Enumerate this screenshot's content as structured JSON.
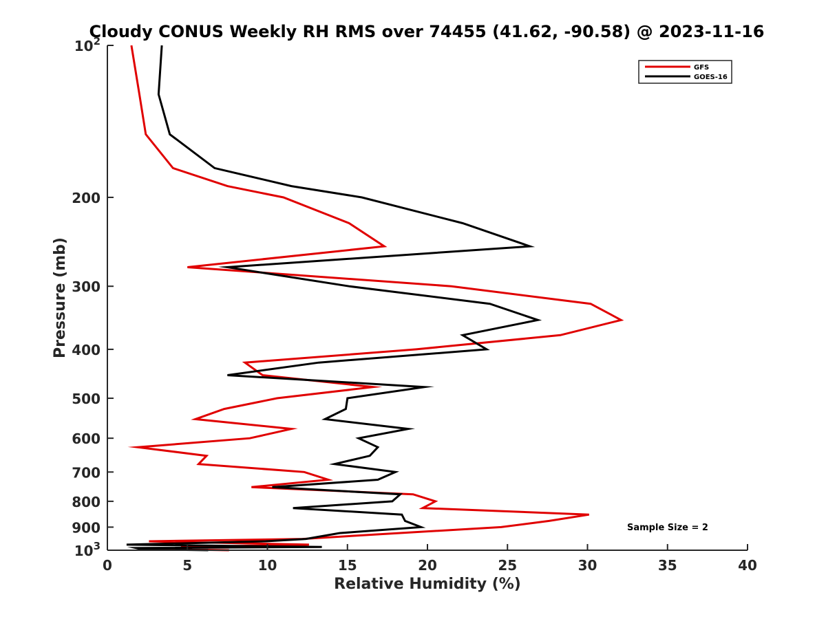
{
  "chart_data": {
    "type": "line",
    "title": "Cloudy CONUS Weekly RH RMS over 74455 (41.62, -90.58) @ 2023-11-16",
    "xlabel": "Relative Humidity (%)",
    "ylabel": "Pressure (mb)",
    "xlim": [
      0,
      40
    ],
    "ylim": [
      100,
      1000
    ],
    "y_scale": "log",
    "y_reversed": true,
    "grid": false,
    "legend_position": "top-right",
    "annotation": "Sample Size = 2",
    "x_ticks": [
      {
        "value": 0,
        "label": "0"
      },
      {
        "value": 5,
        "label": "5"
      },
      {
        "value": 10,
        "label": "10"
      },
      {
        "value": 15,
        "label": "15"
      },
      {
        "value": 20,
        "label": "20"
      },
      {
        "value": 25,
        "label": "25"
      },
      {
        "value": 30,
        "label": "30"
      },
      {
        "value": 35,
        "label": "35"
      },
      {
        "value": 40,
        "label": "40"
      }
    ],
    "y_ticks": [
      {
        "value": 100,
        "base": "10",
        "exp": "2"
      },
      {
        "value": 200,
        "label": "200"
      },
      {
        "value": 300,
        "label": "300"
      },
      {
        "value": 400,
        "label": "400"
      },
      {
        "value": 500,
        "label": "500"
      },
      {
        "value": 600,
        "label": "600"
      },
      {
        "value": 700,
        "label": "700"
      },
      {
        "value": 800,
        "label": "800"
      },
      {
        "value": 900,
        "label": "900"
      },
      {
        "value": 1000,
        "base": "10",
        "exp": "3"
      }
    ],
    "series": [
      {
        "name": "GFS",
        "color": "#e00000",
        "points": [
          {
            "p": 100,
            "x": 1.5
          },
          {
            "p": 125,
            "x": 2.0
          },
          {
            "p": 150,
            "x": 2.4
          },
          {
            "p": 175,
            "x": 4.1
          },
          {
            "p": 190,
            "x": 7.5
          },
          {
            "p": 200,
            "x": 11.0
          },
          {
            "p": 225,
            "x": 15.1
          },
          {
            "p": 250,
            "x": 17.3
          },
          {
            "p": 275,
            "x": 5.0
          },
          {
            "p": 300,
            "x": 21.5
          },
          {
            "p": 325,
            "x": 30.2
          },
          {
            "p": 350,
            "x": 32.1
          },
          {
            "p": 375,
            "x": 28.3
          },
          {
            "p": 400,
            "x": 19.3
          },
          {
            "p": 425,
            "x": 8.6
          },
          {
            "p": 450,
            "x": 9.7
          },
          {
            "p": 475,
            "x": 16.6
          },
          {
            "p": 500,
            "x": 10.6
          },
          {
            "p": 525,
            "x": 7.3
          },
          {
            "p": 550,
            "x": 5.5
          },
          {
            "p": 575,
            "x": 11.5
          },
          {
            "p": 600,
            "x": 8.9
          },
          {
            "p": 625,
            "x": 1.9
          },
          {
            "p": 650,
            "x": 6.2
          },
          {
            "p": 675,
            "x": 5.7
          },
          {
            "p": 700,
            "x": 12.3
          },
          {
            "p": 725,
            "x": 13.8
          },
          {
            "p": 750,
            "x": 9.0
          },
          {
            "p": 775,
            "x": 19.1
          },
          {
            "p": 800,
            "x": 20.5
          },
          {
            "p": 825,
            "x": 19.7
          },
          {
            "p": 850,
            "x": 30.1
          },
          {
            "p": 875,
            "x": 27.6
          },
          {
            "p": 900,
            "x": 24.6
          },
          {
            "p": 925,
            "x": 18.2
          },
          {
            "p": 950,
            "x": 12.2
          },
          {
            "p": 960,
            "x": 2.6
          },
          {
            "p": 975,
            "x": 12.6
          },
          {
            "p": 985,
            "x": 4.6
          },
          {
            "p": 990,
            "x": 5.3
          },
          {
            "p": 995,
            "x": 3.1
          },
          {
            "p": 1000,
            "x": 7.6
          }
        ]
      },
      {
        "name": "GOES-16",
        "color": "#000000",
        "points": [
          {
            "p": 100,
            "x": 3.4
          },
          {
            "p": 125,
            "x": 3.2
          },
          {
            "p": 150,
            "x": 3.9
          },
          {
            "p": 175,
            "x": 6.7
          },
          {
            "p": 190,
            "x": 11.5
          },
          {
            "p": 200,
            "x": 15.9
          },
          {
            "p": 225,
            "x": 22.2
          },
          {
            "p": 250,
            "x": 26.4
          },
          {
            "p": 275,
            "x": 7.5
          },
          {
            "p": 300,
            "x": 15.1
          },
          {
            "p": 325,
            "x": 23.9
          },
          {
            "p": 350,
            "x": 26.9
          },
          {
            "p": 375,
            "x": 22.2
          },
          {
            "p": 400,
            "x": 23.7
          },
          {
            "p": 425,
            "x": 13.2
          },
          {
            "p": 450,
            "x": 7.5
          },
          {
            "p": 475,
            "x": 19.8
          },
          {
            "p": 500,
            "x": 15.0
          },
          {
            "p": 525,
            "x": 14.9
          },
          {
            "p": 550,
            "x": 13.6
          },
          {
            "p": 575,
            "x": 18.8
          },
          {
            "p": 600,
            "x": 15.7
          },
          {
            "p": 625,
            "x": 16.9
          },
          {
            "p": 650,
            "x": 16.4
          },
          {
            "p": 675,
            "x": 14.2
          },
          {
            "p": 700,
            "x": 18.0
          },
          {
            "p": 725,
            "x": 16.9
          },
          {
            "p": 750,
            "x": 10.3
          },
          {
            "p": 775,
            "x": 18.3
          },
          {
            "p": 800,
            "x": 17.8
          },
          {
            "p": 825,
            "x": 11.6
          },
          {
            "p": 850,
            "x": 18.4
          },
          {
            "p": 875,
            "x": 18.6
          },
          {
            "p": 900,
            "x": 19.6
          },
          {
            "p": 925,
            "x": 14.5
          },
          {
            "p": 950,
            "x": 12.4
          },
          {
            "p": 960,
            "x": 9.9
          },
          {
            "p": 975,
            "x": 1.2
          },
          {
            "p": 985,
            "x": 13.4
          },
          {
            "p": 990,
            "x": 1.8
          },
          {
            "p": 995,
            "x": 2.1
          },
          {
            "p": 1000,
            "x": 6.3
          }
        ]
      }
    ]
  }
}
